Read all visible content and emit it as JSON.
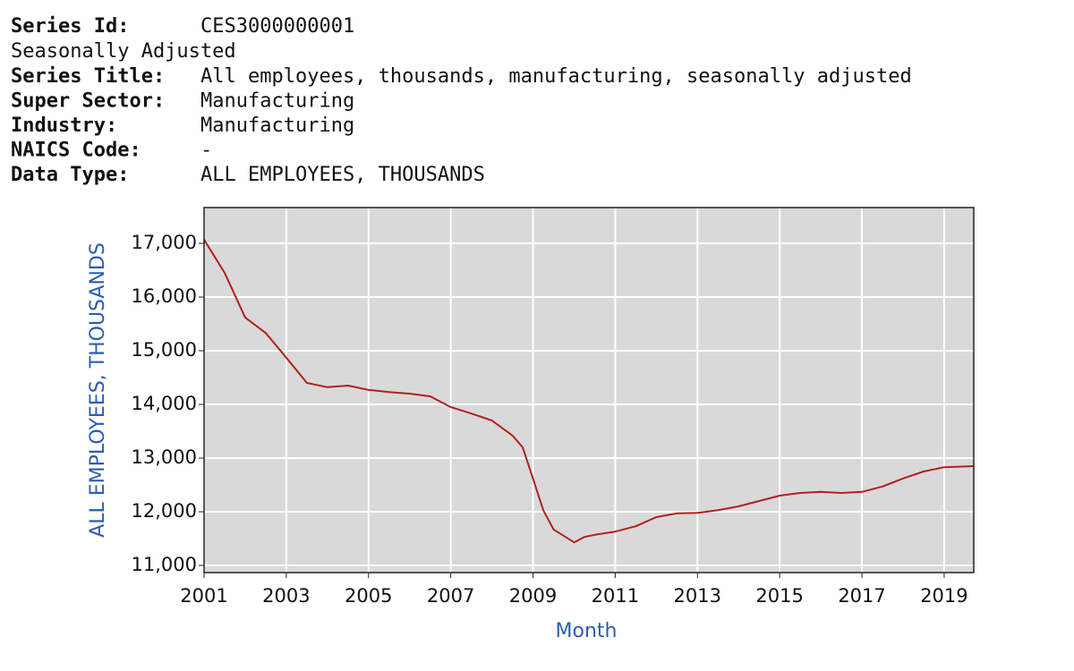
{
  "header": {
    "series_id": {
      "label": "Series Id:",
      "value": "CES3000000001"
    },
    "seasonality": "Seasonally Adjusted",
    "fields": [
      {
        "label": "Series Title:",
        "value": "All employees, thousands, manufacturing, seasonally adjusted"
      },
      {
        "label": "Super Sector:",
        "value": "Manufacturing"
      },
      {
        "label": "Industry:",
        "value": "Manufacturing"
      },
      {
        "label": "NAICS Code:",
        "value": "-"
      },
      {
        "label": "Data Type:",
        "value": "ALL EMPLOYEES, THOUSANDS"
      }
    ]
  },
  "chart_data": {
    "type": "line",
    "ylabel": "ALL EMPLOYEES, THOUSANDS",
    "xlabel": "Month",
    "x": [
      2001.0,
      2001.5,
      2002.0,
      2002.5,
      2003.0,
      2003.5,
      2004.0,
      2004.5,
      2005.0,
      2005.5,
      2006.0,
      2006.5,
      2007.0,
      2007.5,
      2008.0,
      2008.5,
      2008.75,
      2009.0,
      2009.25,
      2009.5,
      2010.0,
      2010.25,
      2010.5,
      2011.0,
      2011.5,
      2012.0,
      2012.5,
      2013.0,
      2013.5,
      2014.0,
      2014.5,
      2015.0,
      2015.5,
      2016.0,
      2016.5,
      2017.0,
      2017.5,
      2018.0,
      2018.5,
      2019.0,
      2019.72
    ],
    "values": [
      17070,
      16450,
      15620,
      15330,
      14870,
      14400,
      14320,
      14350,
      14270,
      14230,
      14200,
      14150,
      13950,
      13830,
      13700,
      13420,
      13200,
      12620,
      12030,
      11670,
      11430,
      11530,
      11570,
      11630,
      11730,
      11900,
      11970,
      11980,
      12030,
      12100,
      12200,
      12300,
      12350,
      12370,
      12350,
      12370,
      12470,
      12620,
      12750,
      12830,
      12850
    ],
    "color": "#b0211c",
    "xlim": [
      2001,
      2019.72
    ],
    "xticks": [
      2001,
      2003,
      2005,
      2007,
      2009,
      2011,
      2013,
      2015,
      2017,
      2019
    ],
    "ylim": [
      10867,
      17667
    ],
    "yticks": [
      {
        "value": 11000,
        "label": "11,000"
      },
      {
        "value": 12000,
        "label": "12,000"
      },
      {
        "value": 13000,
        "label": "13,000"
      },
      {
        "value": 14000,
        "label": "14,000"
      },
      {
        "value": 15000,
        "label": "15,000"
      },
      {
        "value": 16000,
        "label": "16,000"
      },
      {
        "value": 17000,
        "label": "17,000"
      }
    ],
    "grid": true
  }
}
